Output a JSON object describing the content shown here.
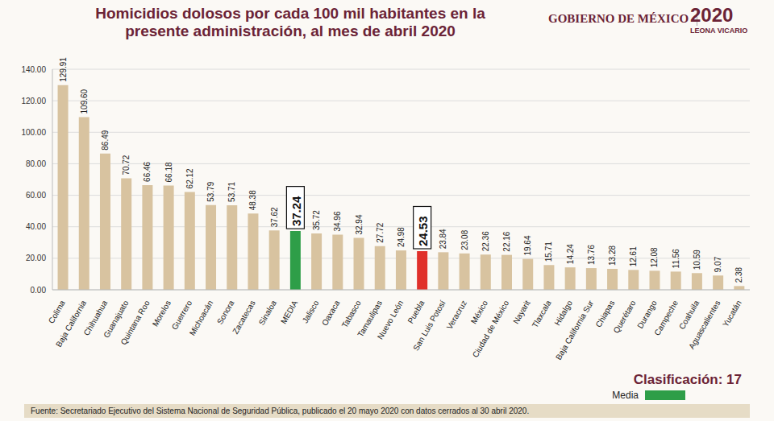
{
  "chart_data": {
    "type": "bar",
    "title": "Homicidios dolosos por cada 100 mil habitantes en la presente administración, al mes de abril 2020",
    "header": {
      "logo_text": "GOBIERNO DE MÉXICO",
      "year": "2020",
      "name": "LEONA VICARIO"
    },
    "categories": [
      "Colima",
      "Baja California",
      "Chihuahua",
      "Guanajuato",
      "Quintana Roo",
      "Morelos",
      "Guerrero",
      "Michoacán",
      "Sonora",
      "Zacatecas",
      "Sinaloa",
      "MEDIA",
      "Jalisco",
      "Oaxaca",
      "Tabasco",
      "Tamaulipas",
      "Nuevo León",
      "Puebla",
      "San Luis Potosí",
      "Veracruz",
      "México",
      "Ciudad de México",
      "Nayarit",
      "Tlaxcala",
      "Hidalgo",
      "Baja California Sur",
      "Chiapas",
      "Querétaro",
      "Durango",
      "Campeche",
      "Coahuila",
      "Aguascalientes",
      "Yucatán"
    ],
    "values": [
      129.91,
      109.6,
      86.49,
      70.72,
      66.46,
      66.18,
      62.12,
      53.79,
      53.71,
      48.38,
      37.62,
      37.24,
      35.72,
      34.96,
      32.94,
      27.72,
      24.98,
      24.53,
      23.84,
      23.08,
      22.36,
      22.16,
      19.64,
      15.71,
      14.24,
      13.76,
      13.28,
      12.61,
      12.08,
      11.56,
      10.59,
      9.07,
      2.38
    ],
    "value_labels": [
      "129.91",
      "109.60",
      "86.49",
      "70.72",
      "66.46",
      "66.18",
      "62.12",
      "53.79",
      "53.71",
      "48.38",
      "37.62",
      "37.24",
      "35.72",
      "34.96",
      "32.94",
      "27.72",
      "24.98",
      "24.53",
      "23.84",
      "23.08",
      "22.36",
      "22.16",
      "19.64",
      "15.71",
      "14.24",
      "13.76",
      "13.28",
      "12.61",
      "12.08",
      "11.56",
      "10.59",
      "9.07",
      "2.38"
    ],
    "colors": [
      "#d8c3a0",
      "#d8c3a0",
      "#d8c3a0",
      "#d8c3a0",
      "#d8c3a0",
      "#d8c3a0",
      "#d8c3a0",
      "#d8c3a0",
      "#d8c3a0",
      "#d8c3a0",
      "#d8c3a0",
      "#2e9e48",
      "#d8c3a0",
      "#d8c3a0",
      "#d8c3a0",
      "#d8c3a0",
      "#d8c3a0",
      "#e0302a",
      "#d8c3a0",
      "#d8c3a0",
      "#d8c3a0",
      "#d8c3a0",
      "#d8c3a0",
      "#d8c3a0",
      "#d8c3a0",
      "#d8c3a0",
      "#d8c3a0",
      "#d8c3a0",
      "#d8c3a0",
      "#d8c3a0",
      "#d8c3a0",
      "#d8c3a0",
      "#d8c3a0"
    ],
    "ylim": [
      0,
      140
    ],
    "yticks": [
      {
        "value": 0,
        "label": "0.00"
      },
      {
        "value": 20,
        "label": "20.00"
      },
      {
        "value": 40,
        "label": "40.00"
      },
      {
        "value": 60,
        "label": "60.00"
      },
      {
        "value": 80,
        "label": "80.00"
      },
      {
        "value": 100,
        "label": "100.00"
      },
      {
        "value": 120,
        "label": "120.00"
      },
      {
        "value": 140,
        "label": "140.00"
      }
    ],
    "grid": true,
    "data_labels": true,
    "annotations": [
      "Clasificación: 17"
    ],
    "legend": "lower right",
    "legend_entries": [
      {
        "name": "Media",
        "color": "#2e9e48"
      }
    ],
    "source": "Fuente: Secretariado Ejecutivo del Sistema Nacional de Seguridad Pública, publicado el 20 mayo 2020 con datos cerrados al 30 abril 2020."
  }
}
